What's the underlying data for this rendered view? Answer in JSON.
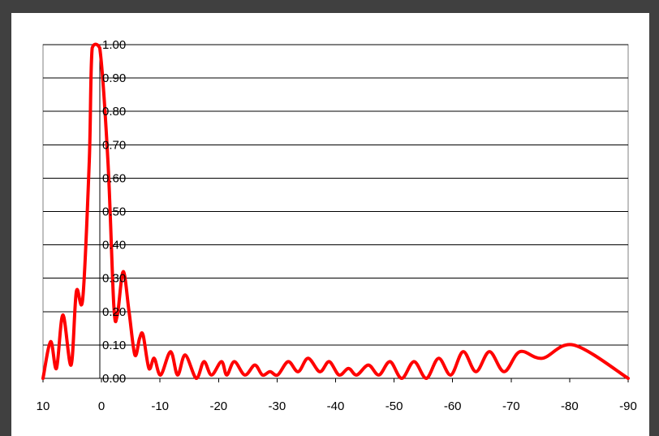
{
  "chart_data": {
    "type": "line",
    "title": "",
    "xlabel": "",
    "ylabel": "",
    "xlim": [
      10,
      -90
    ],
    "ylim": [
      0,
      1
    ],
    "x_reversed": true,
    "grid": "horizontal",
    "legend": "none",
    "x_ticks": [
      "10",
      "0",
      "-10",
      "-20",
      "-30",
      "-40",
      "-50",
      "-60",
      "-70",
      "-80",
      "-90"
    ],
    "x_tick_values": [
      10,
      0,
      -10,
      -20,
      -30,
      -40,
      -50,
      -60,
      -70,
      -80,
      -90
    ],
    "y_ticks": [
      "0.00",
      "0.10",
      "0.20",
      "0.30",
      "0.40",
      "0.50",
      "0.60",
      "0.70",
      "0.80",
      "0.90",
      "1.00"
    ],
    "y_tick_values": [
      0,
      0.1,
      0.2,
      0.3,
      0.4,
      0.5,
      0.6,
      0.7,
      0.8,
      0.9,
      1.0
    ],
    "series": [
      {
        "color": "#ff0000",
        "x": [
          10,
          8.7,
          7.7,
          6.6,
          5.2,
          4.3,
          3.2,
          2.1,
          1.6,
          0.3,
          -1.1,
          -2.1,
          -2.7,
          -3.7,
          -4.7,
          -5.7,
          -6.5,
          -7.1,
          -8.1,
          -9,
          -10.1,
          -11.8,
          -13,
          -14.3,
          -16.2,
          -17.5,
          -18.8,
          -20.5,
          -21.4,
          -22.7,
          -24.5,
          -26.2,
          -27.5,
          -28.8,
          -30.1,
          -31.9,
          -33.6,
          -35.3,
          -37.3,
          -38.9,
          -40.6,
          -42.2,
          -43.6,
          -45.6,
          -47.4,
          -49.3,
          -51.3,
          -53.4,
          -55.5,
          -57.6,
          -59.7,
          -61.8,
          -64,
          -66.3,
          -68.8,
          -71.5,
          -75.3,
          -80.7,
          -90
        ],
        "y": [
          0,
          0.11,
          0.03,
          0.19,
          0.04,
          0.26,
          0.24,
          0.65,
          0.99,
          0.99,
          0.65,
          0.22,
          0.19,
          0.32,
          0.2,
          0.07,
          0.12,
          0.13,
          0.03,
          0.06,
          0.01,
          0.08,
          0.01,
          0.07,
          0.0,
          0.05,
          0.01,
          0.05,
          0.01,
          0.05,
          0.01,
          0.04,
          0.01,
          0.02,
          0.01,
          0.05,
          0.02,
          0.06,
          0.02,
          0.05,
          0.01,
          0.03,
          0.01,
          0.04,
          0.01,
          0.05,
          0.0,
          0.05,
          0.0,
          0.06,
          0.01,
          0.08,
          0.02,
          0.08,
          0.02,
          0.08,
          0.06,
          0.1,
          0.0
        ]
      }
    ]
  }
}
